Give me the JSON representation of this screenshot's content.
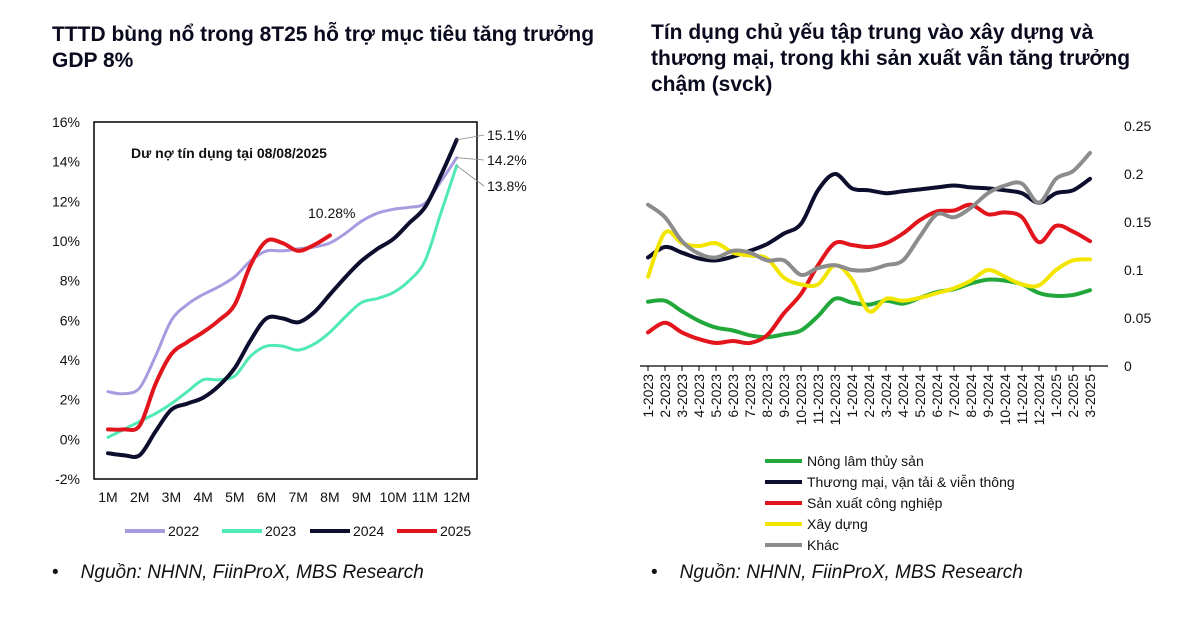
{
  "left": {
    "title": "TTTD bùng nổ trong 8T25 hỗ trợ mục tiêu tăng trưởng GDP 8%",
    "source_bullet": "•",
    "source": "Nguồn: NHNN, FiinProX, MBS Research"
  },
  "right": {
    "title": "Tín dụng chủ yếu tập trung vào xây dựng và thương mại, trong khi sản xuất vẫn tăng trưởng chậm (svck)",
    "source_bullet": "•",
    "source": "Nguồn: NHNN, FiinProX, MBS Research"
  },
  "chart_data": [
    {
      "type": "line",
      "title": "",
      "annotation": "Dư nợ tín dụng tại 08/08/2025",
      "categories": [
        "1M",
        "2M",
        "3M",
        "4M",
        "5M",
        "6M",
        "7M",
        "8M",
        "9M",
        "10M",
        "11M",
        "12M"
      ],
      "ylim": [
        -2,
        16
      ],
      "y_ticks": [
        -2,
        0,
        2,
        4,
        6,
        8,
        10,
        12,
        14,
        16
      ],
      "y_tick_labels": [
        "-2%",
        "0%",
        "2%",
        "4%",
        "6%",
        "8%",
        "10%",
        "12%",
        "14%",
        "16%"
      ],
      "legend_position": "bottom",
      "series": [
        {
          "name": "2022",
          "color": "#a99be0",
          "width": 3,
          "points": [
            [
              1,
              2.4
            ],
            [
              1.5,
              2.3
            ],
            [
              2,
              2.6
            ],
            [
              2.5,
              4.2
            ],
            [
              3,
              6.0
            ],
            [
              3.5,
              6.8
            ],
            [
              4,
              7.3
            ],
            [
              4.5,
              7.7
            ],
            [
              5,
              8.2
            ],
            [
              5.5,
              9.0
            ],
            [
              6,
              9.5
            ],
            [
              6.5,
              9.5
            ],
            [
              7,
              9.6
            ],
            [
              7.5,
              9.7
            ],
            [
              8,
              9.9
            ],
            [
              8.5,
              10.4
            ],
            [
              9,
              11.0
            ],
            [
              9.5,
              11.4
            ],
            [
              10,
              11.6
            ],
            [
              10.5,
              11.7
            ],
            [
              11,
              11.9
            ],
            [
              11.5,
              13.0
            ],
            [
              12,
              14.2
            ]
          ]
        },
        {
          "name": "2023",
          "color": "#4fe9b6",
          "width": 3,
          "points": [
            [
              1,
              0.1
            ],
            [
              1.5,
              0.5
            ],
            [
              2,
              0.9
            ],
            [
              2.5,
              1.3
            ],
            [
              3,
              1.8
            ],
            [
              3.5,
              2.4
            ],
            [
              4,
              3.0
            ],
            [
              4.5,
              3.0
            ],
            [
              5,
              3.2
            ],
            [
              5.5,
              4.2
            ],
            [
              6,
              4.7
            ],
            [
              6.5,
              4.7
            ],
            [
              7,
              4.5
            ],
            [
              7.5,
              4.8
            ],
            [
              8,
              5.4
            ],
            [
              8.5,
              6.2
            ],
            [
              9,
              6.9
            ],
            [
              9.5,
              7.1
            ],
            [
              10,
              7.4
            ],
            [
              10.5,
              8.0
            ],
            [
              11,
              9.0
            ],
            [
              11.5,
              11.4
            ],
            [
              12,
              13.8
            ]
          ]
        },
        {
          "name": "2024",
          "color": "#0d0d2e",
          "width": 4,
          "points": [
            [
              1,
              -0.7
            ],
            [
              1.5,
              -0.8
            ],
            [
              2,
              -0.8
            ],
            [
              2.5,
              0.4
            ],
            [
              3,
              1.5
            ],
            [
              3.5,
              1.8
            ],
            [
              4,
              2.1
            ],
            [
              4.5,
              2.7
            ],
            [
              5,
              3.6
            ],
            [
              5.5,
              5.0
            ],
            [
              6,
              6.1
            ],
            [
              6.5,
              6.1
            ],
            [
              7,
              5.9
            ],
            [
              7.5,
              6.4
            ],
            [
              8,
              7.3
            ],
            [
              8.5,
              8.2
            ],
            [
              9,
              9.0
            ],
            [
              9.5,
              9.6
            ],
            [
              10,
              10.1
            ],
            [
              10.5,
              10.9
            ],
            [
              11,
              11.7
            ],
            [
              11.5,
              13.3
            ],
            [
              12,
              15.1
            ]
          ]
        },
        {
          "name": "2025",
          "color": "#e3151c",
          "width": 4,
          "points": [
            [
              1,
              0.5
            ],
            [
              1.5,
              0.5
            ],
            [
              2,
              0.7
            ],
            [
              2.5,
              2.8
            ],
            [
              3,
              4.3
            ],
            [
              3.5,
              4.9
            ],
            [
              4,
              5.4
            ],
            [
              4.5,
              6.0
            ],
            [
              5,
              6.8
            ],
            [
              5.5,
              8.8
            ],
            [
              6,
              10.0
            ],
            [
              6.5,
              9.9
            ],
            [
              7,
              9.5
            ],
            [
              7.5,
              9.8
            ],
            [
              8,
              10.28
            ]
          ]
        }
      ],
      "labels": [
        {
          "text": "15.1%",
          "series": "2024"
        },
        {
          "text": "14.2%",
          "series": "2022"
        },
        {
          "text": "13.8%",
          "series": "2023"
        },
        {
          "text": "10.28%",
          "series": "2025"
        }
      ]
    },
    {
      "type": "line",
      "title": "",
      "categories": [
        "1-2023",
        "2-2023",
        "3-2023",
        "4-2023",
        "5-2023",
        "6-2023",
        "7-2023",
        "8-2023",
        "9-2023",
        "10-2023",
        "11-2023",
        "12-2023",
        "1-2024",
        "2-2024",
        "3-2024",
        "4-2024",
        "5-2024",
        "6-2024",
        "7-2024",
        "8-2024",
        "9-2024",
        "10-2024",
        "11-2024",
        "12-2024",
        "1-2025",
        "2-2025",
        "3-2025"
      ],
      "ylim": [
        0,
        0.25
      ],
      "y_ticks": [
        0,
        0.05,
        0.1,
        0.15,
        0.2,
        0.25
      ],
      "y_tick_labels": [
        "0",
        "0.05",
        "0.1",
        "0.15",
        "0.2",
        "0.25"
      ],
      "y_axis_side": "right",
      "legend_position": "bottom",
      "series": [
        {
          "name": "Nông lâm thủy sản",
          "color": "#22a83a",
          "values": [
            0.067,
            0.068,
            0.057,
            0.047,
            0.04,
            0.037,
            0.032,
            0.03,
            0.033,
            0.037,
            0.052,
            0.07,
            0.066,
            0.064,
            0.068,
            0.065,
            0.071,
            0.077,
            0.08,
            0.086,
            0.09,
            0.089,
            0.085,
            0.076,
            0.073,
            0.074,
            0.079
          ]
        },
        {
          "name": "Thương mại, vận tải & viễn thông",
          "color": "#0d0d2e",
          "values": [
            0.113,
            0.124,
            0.118,
            0.112,
            0.11,
            0.114,
            0.12,
            0.127,
            0.138,
            0.148,
            0.183,
            0.2,
            0.185,
            0.183,
            0.18,
            0.182,
            0.184,
            0.186,
            0.188,
            0.186,
            0.185,
            0.183,
            0.18,
            0.17,
            0.18,
            0.183,
            0.195
          ]
        },
        {
          "name": "Sản xuất công nghiệp",
          "color": "#e3151c",
          "values": [
            0.035,
            0.045,
            0.035,
            0.028,
            0.024,
            0.026,
            0.024,
            0.032,
            0.055,
            0.075,
            0.105,
            0.128,
            0.126,
            0.124,
            0.128,
            0.138,
            0.152,
            0.161,
            0.162,
            0.168,
            0.158,
            0.16,
            0.155,
            0.129,
            0.146,
            0.14,
            0.13
          ]
        },
        {
          "name": "Xây dựng",
          "color": "#f2e600",
          "values": [
            0.093,
            0.139,
            0.128,
            0.125,
            0.128,
            0.118,
            0.115,
            0.112,
            0.092,
            0.085,
            0.085,
            0.105,
            0.09,
            0.057,
            0.07,
            0.068,
            0.071,
            0.076,
            0.081,
            0.089,
            0.1,
            0.093,
            0.085,
            0.084,
            0.1,
            0.11,
            0.111
          ]
        },
        {
          "name": "Khác",
          "color": "#8c8c8c",
          "values": [
            0.168,
            0.155,
            0.13,
            0.117,
            0.113,
            0.12,
            0.118,
            0.11,
            0.11,
            0.095,
            0.102,
            0.105,
            0.1,
            0.1,
            0.105,
            0.11,
            0.135,
            0.158,
            0.155,
            0.165,
            0.18,
            0.188,
            0.19,
            0.17,
            0.195,
            0.203,
            0.222
          ]
        }
      ]
    }
  ]
}
